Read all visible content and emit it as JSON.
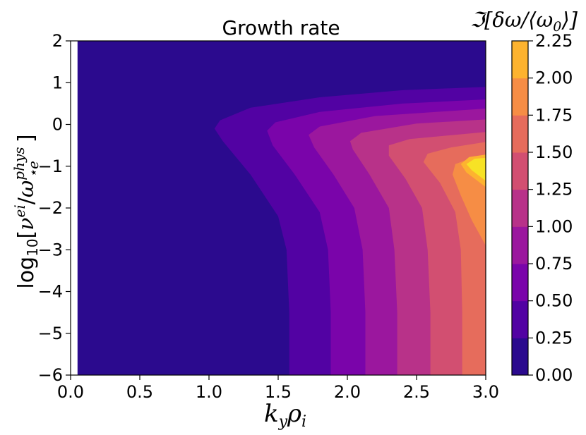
{
  "chart_data": {
    "type": "contour",
    "title": "Growth rate",
    "xlabel": "k_y ρ_i",
    "ylabel": "log₁₀[ν^ei / ω*e^phys]",
    "colorbar_label": "ℑ[δω/⟨ω₀⟩]",
    "xlim": [
      0.0,
      3.0
    ],
    "ylim": [
      -6,
      2
    ],
    "x_ticks": [
      "0.0",
      "0.5",
      "1.0",
      "1.5",
      "2.0",
      "2.5",
      "3.0"
    ],
    "y_ticks": [
      "−6",
      "−5",
      "−4",
      "−3",
      "−2",
      "−1",
      "0",
      "1",
      "2"
    ],
    "colorbar_ticks": [
      "0.00",
      "0.25",
      "0.50",
      "0.75",
      "1.00",
      "1.25",
      "1.50",
      "1.75",
      "2.00",
      "2.25"
    ],
    "levels": [
      0.0,
      0.25,
      0.5,
      0.75,
      1.0,
      1.25,
      1.5,
      1.75,
      2.0,
      2.25
    ],
    "colors": [
      "#2b0a8e",
      "#5202a3",
      "#7a04aa",
      "#9b179e",
      "#b83289",
      "#d24f71",
      "#e66c5c",
      "#f68d45",
      "#fdb32f",
      "#f7e225"
    ],
    "contour_boundaries": [
      {
        "level": 0.25,
        "points": [
          [
            1.58,
            -6
          ],
          [
            1.58,
            -4.5
          ],
          [
            1.56,
            -3
          ],
          [
            1.5,
            -2.2
          ],
          [
            1.3,
            -1.2
          ],
          [
            1.1,
            -0.4
          ],
          [
            1.04,
            -0.1
          ],
          [
            1.08,
            0.1
          ],
          [
            1.3,
            0.4
          ],
          [
            1.8,
            0.65
          ],
          [
            2.4,
            0.82
          ],
          [
            3.0,
            0.9
          ]
        ]
      },
      {
        "level": 0.5,
        "points": [
          [
            1.88,
            -6
          ],
          [
            1.88,
            -4.5
          ],
          [
            1.86,
            -3
          ],
          [
            1.8,
            -2.1
          ],
          [
            1.62,
            -1.2
          ],
          [
            1.46,
            -0.5
          ],
          [
            1.42,
            -0.15
          ],
          [
            1.48,
            0.05
          ],
          [
            1.8,
            0.3
          ],
          [
            2.4,
            0.5
          ],
          [
            3.0,
            0.6
          ]
        ]
      },
      {
        "level": 0.75,
        "points": [
          [
            2.13,
            -6
          ],
          [
            2.13,
            -4.5
          ],
          [
            2.11,
            -3
          ],
          [
            2.05,
            -2
          ],
          [
            1.9,
            -1.2
          ],
          [
            1.76,
            -0.55
          ],
          [
            1.72,
            -0.25
          ],
          [
            1.8,
            -0.05
          ],
          [
            2.2,
            0.2
          ],
          [
            3.0,
            0.38
          ]
        ]
      },
      {
        "level": 1.0,
        "points": [
          [
            2.36,
            -6
          ],
          [
            2.36,
            -4.5
          ],
          [
            2.34,
            -3
          ],
          [
            2.3,
            -2
          ],
          [
            2.16,
            -1.2
          ],
          [
            2.04,
            -0.6
          ],
          [
            2.02,
            -0.4
          ],
          [
            2.1,
            -0.2
          ],
          [
            2.5,
            0.02
          ],
          [
            3.0,
            0.12
          ]
        ]
      },
      {
        "level": 1.25,
        "points": [
          [
            2.6,
            -6
          ],
          [
            2.6,
            -4.5
          ],
          [
            2.58,
            -3
          ],
          [
            2.54,
            -2
          ],
          [
            2.42,
            -1.3
          ],
          [
            2.3,
            -0.75
          ],
          [
            2.3,
            -0.5
          ],
          [
            2.45,
            -0.35
          ],
          [
            3.0,
            -0.18
          ]
        ]
      },
      {
        "level": 1.5,
        "points": [
          [
            2.83,
            -6
          ],
          [
            2.83,
            -4.5
          ],
          [
            2.82,
            -3
          ],
          [
            2.78,
            -2.1
          ],
          [
            2.67,
            -1.4
          ],
          [
            2.55,
            -0.9
          ],
          [
            2.58,
            -0.7
          ],
          [
            2.75,
            -0.55
          ],
          [
            3.0,
            -0.42
          ]
        ]
      },
      {
        "level": 1.75,
        "points": [
          [
            3.0,
            -2.9
          ],
          [
            2.9,
            -2.3
          ],
          [
            2.82,
            -1.7
          ],
          [
            2.76,
            -1.2
          ],
          [
            2.78,
            -0.95
          ],
          [
            2.9,
            -0.8
          ],
          [
            3.0,
            -0.72
          ]
        ]
      },
      {
        "level": 2.0,
        "points": [
          [
            3.0,
            -1.5
          ],
          [
            2.86,
            -1.15
          ],
          [
            2.82,
            -0.95
          ],
          [
            2.88,
            -0.78
          ],
          [
            3.0,
            -0.72
          ]
        ]
      }
    ],
    "grid": false
  }
}
